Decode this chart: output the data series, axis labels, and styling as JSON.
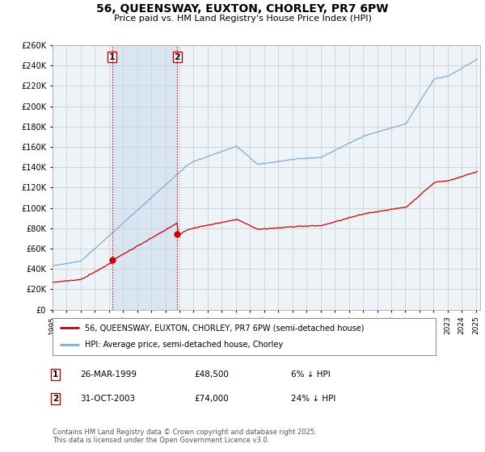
{
  "title": "56, QUEENSWAY, EUXTON, CHORLEY, PR7 6PW",
  "subtitle": "Price paid vs. HM Land Registry's House Price Index (HPI)",
  "ylim": [
    0,
    260000
  ],
  "yticks": [
    0,
    20000,
    40000,
    60000,
    80000,
    100000,
    120000,
    140000,
    160000,
    180000,
    200000,
    220000,
    240000,
    260000
  ],
  "ytick_labels": [
    "£0",
    "£20K",
    "£40K",
    "£60K",
    "£80K",
    "£100K",
    "£120K",
    "£140K",
    "£160K",
    "£180K",
    "£200K",
    "£220K",
    "£240K",
    "£260K"
  ],
  "hpi_color": "#7bafd4",
  "price_color": "#cc0000",
  "grid_color": "#c8c8c8",
  "background_color": "#ffffff",
  "plot_bg_color": "#eef3f8",
  "legend_label_red": "56, QUEENSWAY, EUXTON, CHORLEY, PR7 6PW (semi-detached house)",
  "legend_label_blue": "HPI: Average price, semi-detached house, Chorley",
  "marker1_date": "26-MAR-1999",
  "marker1_price": "£48,500",
  "marker1_pct": "6% ↓ HPI",
  "marker2_date": "31-OCT-2003",
  "marker2_price": "£74,000",
  "marker2_pct": "24% ↓ HPI",
  "footnote": "Contains HM Land Registry data © Crown copyright and database right 2025.\nThis data is licensed under the Open Government Licence v3.0.",
  "purchase_years": [
    1999.23,
    2003.84
  ],
  "purchase_prices": [
    48500,
    74000
  ],
  "vline1_x": 1999.23,
  "vline2_x": 2003.84,
  "vline_color": "#cc0000",
  "shade_color": "#c5d8ec",
  "shade_alpha": 0.5,
  "xtick_years": [
    1995,
    1996,
    1997,
    1998,
    1999,
    2000,
    2001,
    2002,
    2003,
    2004,
    2005,
    2006,
    2007,
    2008,
    2009,
    2010,
    2011,
    2012,
    2013,
    2014,
    2015,
    2016,
    2017,
    2018,
    2019,
    2020,
    2021,
    2022,
    2023,
    2024,
    2025
  ]
}
